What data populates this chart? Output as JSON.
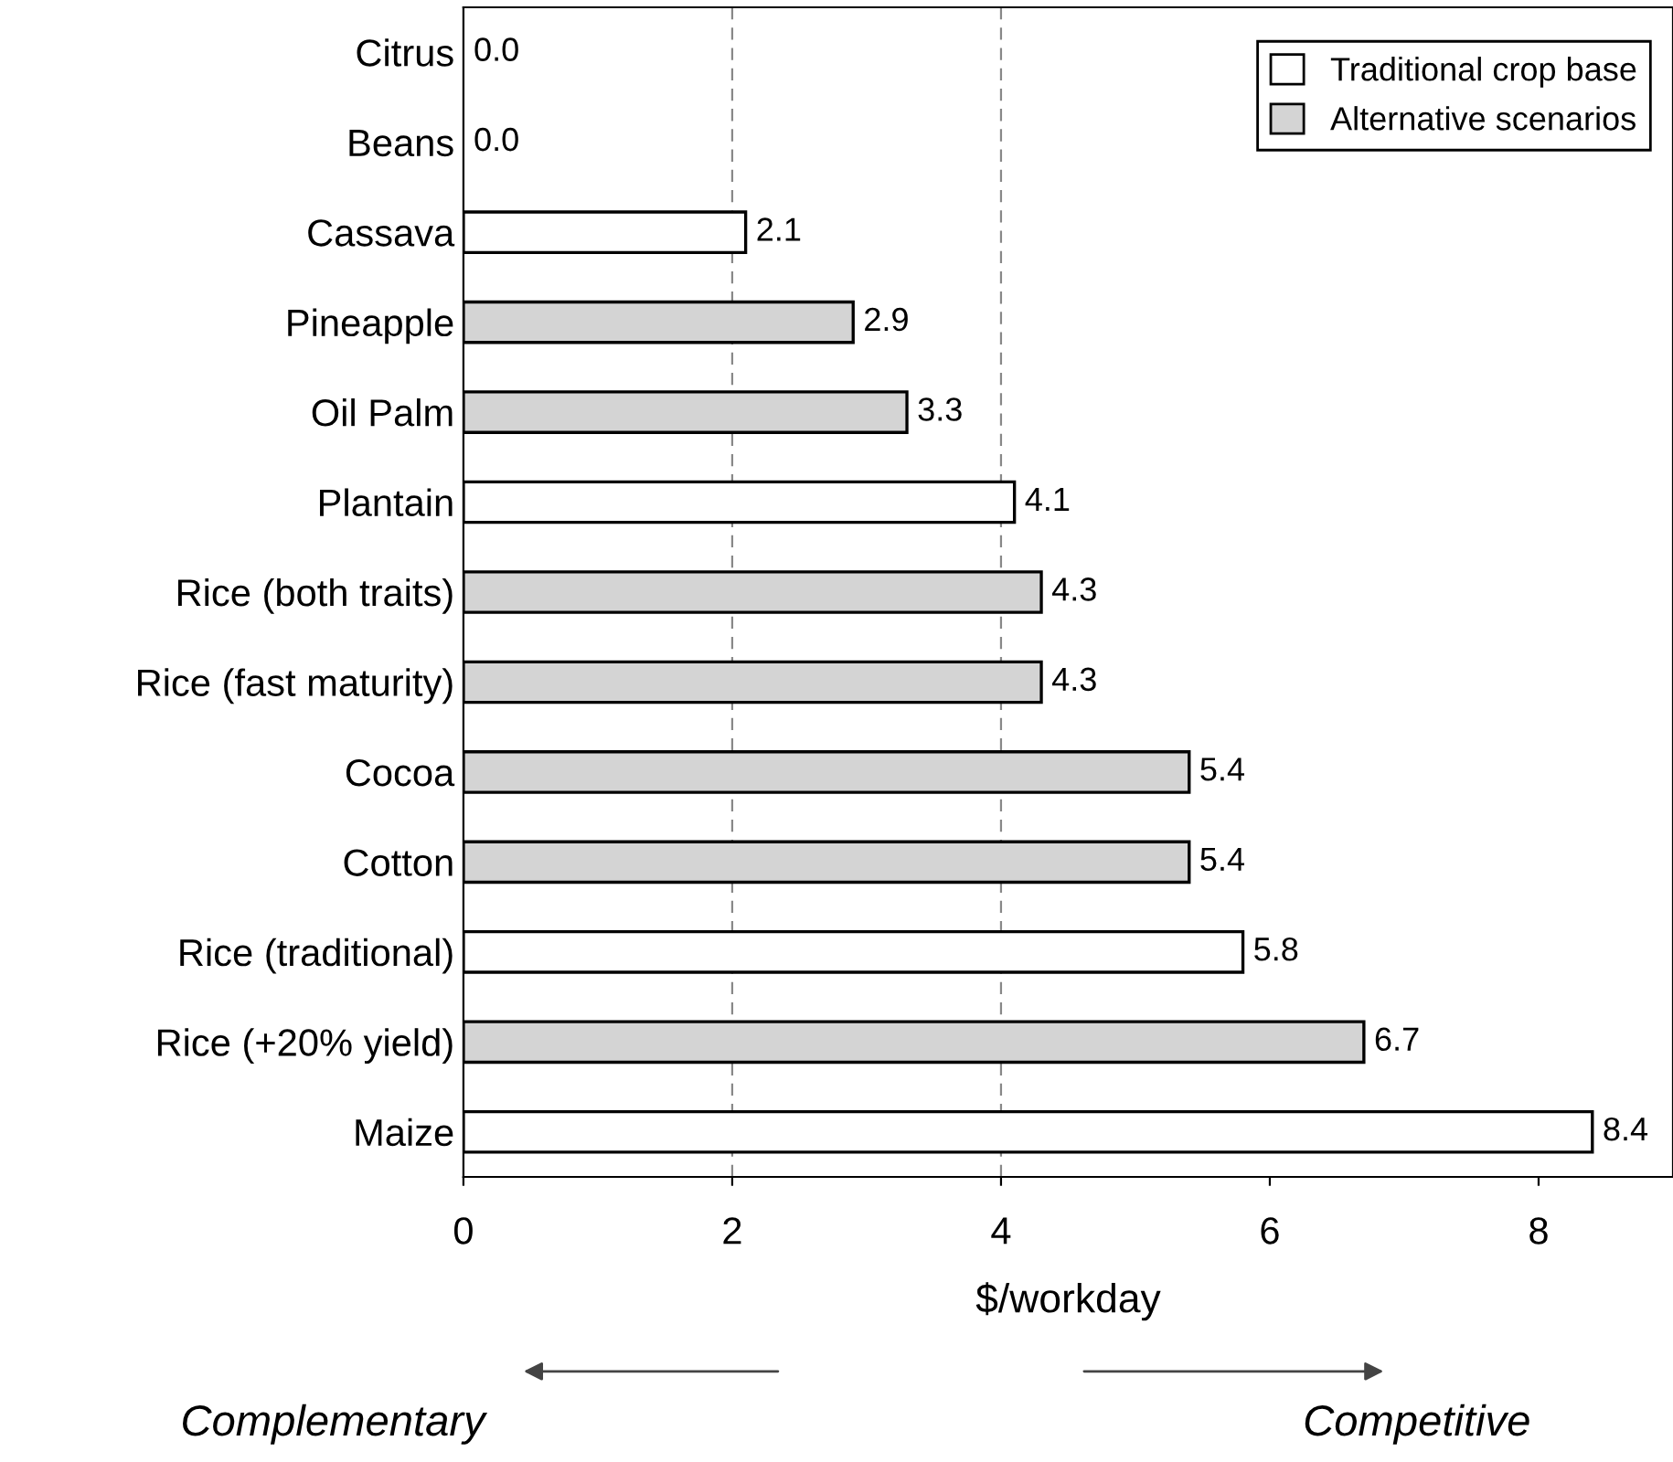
{
  "chart_data": {
    "type": "bar",
    "orientation": "horizontal",
    "categories": [
      "Citrus",
      "Beans",
      "Cassava",
      "Pineapple",
      "Oil Palm",
      "Plantain",
      "Rice (both traits)",
      "Rice (fast maturity)",
      "Cocoa",
      "Cotton",
      "Rice (traditional)",
      "Rice (+20% yield)",
      "Maize"
    ],
    "series": [
      {
        "name": "Traditional crop base",
        "color": "#ffffff",
        "values": [
          0.0,
          0.0,
          2.1,
          null,
          null,
          4.1,
          null,
          null,
          null,
          null,
          5.8,
          null,
          8.4
        ],
        "value_labels": [
          "0.0",
          "0.0",
          "2.1",
          null,
          null,
          "4.1",
          null,
          null,
          null,
          null,
          "5.8",
          null,
          "8.4"
        ]
      },
      {
        "name": "Alternative scenarios",
        "color": "#d4d4d4",
        "values": [
          null,
          null,
          null,
          2.9,
          3.3,
          null,
          4.3,
          4.3,
          5.4,
          5.4,
          null,
          6.7,
          null
        ],
        "value_labels": [
          null,
          null,
          null,
          "2.9",
          "3.3",
          null,
          "4.3",
          "4.3",
          "5.4",
          "5.4",
          null,
          "6.7",
          null
        ]
      }
    ],
    "xlabel": "$/workday",
    "xlim": [
      0,
      9
    ],
    "xticks": [
      0,
      2,
      4,
      6,
      8
    ],
    "ref_lines": [
      {
        "axis": "x",
        "value": 2,
        "color": "#888888",
        "line_style": "dashed"
      },
      {
        "axis": "x",
        "value": 4,
        "color": "#888888",
        "line_style": "dashed"
      }
    ],
    "legend": "top right",
    "grid": false,
    "annotations": [
      "Complementary",
      "Competitive"
    ]
  }
}
